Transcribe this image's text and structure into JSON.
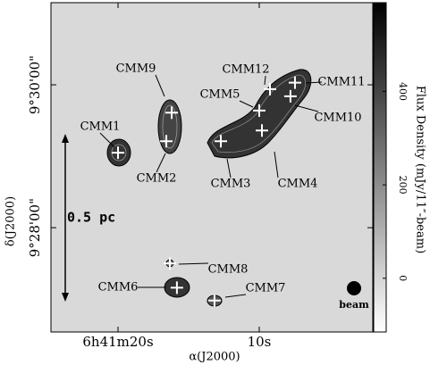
{
  "chart_data": {
    "type": "map",
    "xlabel": "α(J2000)",
    "ylabel": "δ(J2000)",
    "xlim": [
      24.75,
      1.96
    ],
    "ylim": [
      26.54,
      31.15
    ],
    "xticks": [
      {
        "value": 20,
        "label": "6h41m20s"
      },
      {
        "value": 10,
        "label": "10s"
      }
    ],
    "yticks": [
      {
        "value": 30,
        "label": "9°30'00\""
      },
      {
        "value": 28,
        "label": "9°28'00\""
      }
    ],
    "colorbar": {
      "label": "Flux Density (mJy/11″-beam)",
      "lim": [
        -115,
        590
      ],
      "ticks": [
        0,
        200,
        400
      ]
    },
    "sources": [
      {
        "name": "CMM1",
        "ra": 20.0,
        "dec": 29.05
      },
      {
        "name": "CMM2",
        "ra": 16.58,
        "dec": 29.21
      },
      {
        "name": "CMM9",
        "ra": 16.2,
        "dec": 29.61
      },
      {
        "name": "CMM3",
        "ra": 12.72,
        "dec": 29.21
      },
      {
        "name": "CMM4",
        "ra": 9.81,
        "dec": 29.36
      },
      {
        "name": "CMM5",
        "ra": 10.0,
        "dec": 29.64
      },
      {
        "name": "CMM12",
        "ra": 9.24,
        "dec": 29.94
      },
      {
        "name": "CMM11",
        "ra": 7.47,
        "dec": 30.03
      },
      {
        "name": "CMM10",
        "ra": 7.79,
        "dec": 29.84
      },
      {
        "name": "CMM8",
        "ra": 16.33,
        "dec": 27.5
      },
      {
        "name": "CMM6",
        "ra": 15.83,
        "dec": 27.16
      },
      {
        "name": "CMM7",
        "ra": 13.17,
        "dec": 26.98
      }
    ],
    "scale_bar": "0.5 pc",
    "beam": "beam"
  }
}
